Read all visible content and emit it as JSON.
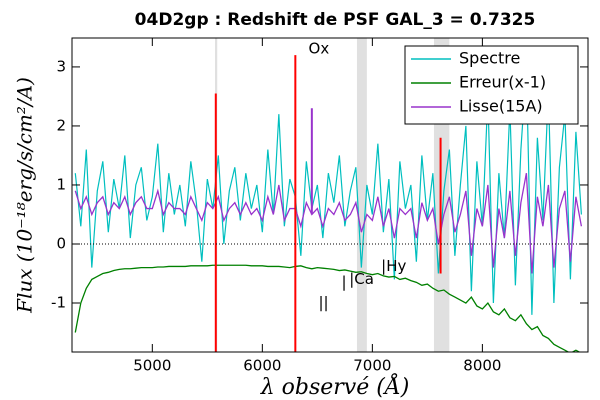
{
  "chart_data": {
    "type": "line",
    "title": "04D2gp : Redshift de PSF GAL_3 = 0.7325",
    "xlabel": "λ observé (Å)",
    "ylabel": "Flux (10⁻¹⁸erg/s/cm²/A)",
    "xlim": [
      4270,
      8960
    ],
    "ylim": [
      -1.83,
      3.49
    ],
    "xticks": [
      5000,
      6000,
      7000,
      8000
    ],
    "yticks": [
      -1,
      0,
      1,
      2,
      3
    ],
    "hline": 0,
    "legend": "upper right",
    "x": [
      4300,
      4350,
      4400,
      4450,
      4500,
      4550,
      4600,
      4650,
      4700,
      4750,
      4800,
      4850,
      4900,
      4950,
      5000,
      5050,
      5100,
      5150,
      5200,
      5250,
      5300,
      5350,
      5400,
      5450,
      5500,
      5550,
      5600,
      5650,
      5700,
      5750,
      5800,
      5850,
      5900,
      5950,
      6000,
      6050,
      6100,
      6150,
      6200,
      6250,
      6300,
      6350,
      6400,
      6450,
      6500,
      6550,
      6600,
      6650,
      6700,
      6750,
      6800,
      6850,
      6900,
      6950,
      7000,
      7050,
      7100,
      7150,
      7200,
      7250,
      7300,
      7350,
      7400,
      7450,
      7500,
      7550,
      7600,
      7650,
      7700,
      7750,
      7800,
      7850,
      7900,
      7950,
      8000,
      8050,
      8100,
      8150,
      8200,
      8250,
      8300,
      8350,
      8400,
      8450,
      8500,
      8550,
      8600,
      8650,
      8700,
      8750,
      8800,
      8850,
      8900
    ],
    "series": [
      {
        "name": "Spectre",
        "color": "#00bfbf",
        "values": [
          1.2,
          0.3,
          1.6,
          -0.4,
          0.9,
          1.4,
          0.2,
          1.1,
          0.6,
          1.5,
          0.1,
          1.0,
          1.3,
          0.4,
          0.8,
          1.7,
          0.2,
          1.2,
          0.5,
          1.0,
          0.3,
          1.4,
          0.7,
          -0.3,
          1.1,
          0.6,
          1.5,
          0.0,
          0.9,
          1.3,
          0.4,
          1.2,
          0.6,
          1.0,
          0.2,
          1.6,
          0.5,
          2.2,
          0.3,
          1.1,
          0.8,
          -0.2,
          1.4,
          0.6,
          1.0,
          0.1,
          1.2,
          0.7,
          1.5,
          0.3,
          0.9,
          1.3,
          -0.4,
          1.0,
          0.5,
          1.7,
          0.2,
          1.1,
          -0.6,
          1.4,
          0.6,
          1.0,
          -0.3,
          1.5,
          0.4,
          1.2,
          -0.5,
          0.9,
          1.6,
          -0.2,
          1.0,
          2.0,
          -0.8,
          1.4,
          0.3,
          2.5,
          -1.0,
          1.2,
          0.1,
          2.3,
          -0.7,
          1.6,
          3.0,
          -1.2,
          1.8,
          0.4,
          2.6,
          -1.0,
          1.3,
          2.2,
          -0.6,
          1.9,
          0.5
        ]
      },
      {
        "name": "Erreur(x-1)",
        "color": "#008000",
        "values": [
          -1.5,
          -1.0,
          -0.75,
          -0.6,
          -0.55,
          -0.5,
          -0.48,
          -0.45,
          -0.43,
          -0.42,
          -0.42,
          -0.41,
          -0.4,
          -0.4,
          -0.4,
          -0.39,
          -0.39,
          -0.38,
          -0.38,
          -0.38,
          -0.38,
          -0.37,
          -0.37,
          -0.37,
          -0.37,
          -0.36,
          -0.36,
          -0.36,
          -0.36,
          -0.36,
          -0.36,
          -0.36,
          -0.37,
          -0.37,
          -0.37,
          -0.38,
          -0.38,
          -0.38,
          -0.39,
          -0.4,
          -0.38,
          -0.37,
          -0.4,
          -0.42,
          -0.4,
          -0.41,
          -0.42,
          -0.43,
          -0.45,
          -0.44,
          -0.46,
          -0.48,
          -0.47,
          -0.5,
          -0.52,
          -0.5,
          -0.54,
          -0.56,
          -0.55,
          -0.6,
          -0.58,
          -0.62,
          -0.65,
          -0.7,
          -0.68,
          -0.75,
          -0.8,
          -0.78,
          -0.85,
          -0.9,
          -0.95,
          -1.0,
          -0.9,
          -1.05,
          -1.1,
          -1.0,
          -1.15,
          -1.2,
          -1.1,
          -1.25,
          -1.3,
          -1.2,
          -1.35,
          -1.45,
          -1.4,
          -1.55,
          -1.6,
          -1.7,
          -1.75,
          -1.8,
          -1.85,
          -1.8,
          -1.85
        ]
      },
      {
        "name": "Lisse(15A)",
        "color": "#9933cc",
        "values": [
          0.9,
          0.6,
          0.8,
          0.5,
          0.7,
          0.8,
          0.5,
          0.7,
          0.6,
          0.8,
          0.5,
          0.7,
          0.8,
          0.6,
          0.6,
          0.9,
          0.5,
          0.7,
          0.6,
          0.6,
          0.5,
          0.8,
          0.6,
          0.4,
          0.7,
          0.6,
          0.8,
          0.4,
          0.6,
          0.7,
          0.5,
          0.7,
          0.5,
          0.6,
          0.4,
          0.8,
          0.5,
          1.0,
          0.4,
          0.6,
          0.6,
          0.3,
          0.7,
          0.5,
          0.6,
          0.3,
          0.6,
          0.5,
          0.7,
          0.4,
          0.5,
          0.7,
          0.2,
          0.5,
          0.4,
          0.8,
          0.3,
          0.6,
          0.1,
          0.6,
          0.5,
          0.6,
          0.1,
          0.7,
          0.4,
          0.6,
          0.0,
          0.5,
          0.8,
          0.2,
          0.5,
          0.9,
          -0.2,
          0.6,
          0.3,
          1.0,
          -0.4,
          0.6,
          0.1,
          0.9,
          -0.2,
          0.7,
          1.2,
          -0.5,
          0.8,
          0.3,
          1.0,
          -0.4,
          0.6,
          0.9,
          -0.3,
          0.8,
          0.3
        ]
      }
    ],
    "bands": [
      [
        5570,
        5590
      ],
      [
        6860,
        6950
      ],
      [
        7560,
        7700
      ]
    ],
    "band_color": "#e0e0e0",
    "spikes": [
      {
        "x": 5577,
        "ymin": -1.83,
        "ymax": 2.55,
        "color": "#ff0000"
      },
      {
        "x": 6300,
        "ymin": -1.83,
        "ymax": 3.2,
        "color": "#ff0000"
      },
      {
        "x": 6450,
        "ymin": 0.5,
        "ymax": 2.3,
        "color": "#9933cc"
      },
      {
        "x": 7620,
        "ymin": -0.5,
        "ymax": 1.8,
        "color": "#ff0000"
      }
    ],
    "annotations": [
      {
        "text": "Ox",
        "x": 6420,
        "y": 3.3,
        "color": "#cc00cc"
      },
      {
        "text": "|",
        "x": 6720,
        "y": -0.65,
        "color": "#0000ff"
      },
      {
        "text": "||",
        "x": 6510,
        "y": -1.0,
        "color": "#0000ff"
      },
      {
        "text": "|Ca",
        "x": 6790,
        "y": -0.6,
        "color": "#ff0000"
      },
      {
        "text": "|Hy",
        "x": 7080,
        "y": -0.38,
        "color": "#0000ff"
      }
    ]
  }
}
